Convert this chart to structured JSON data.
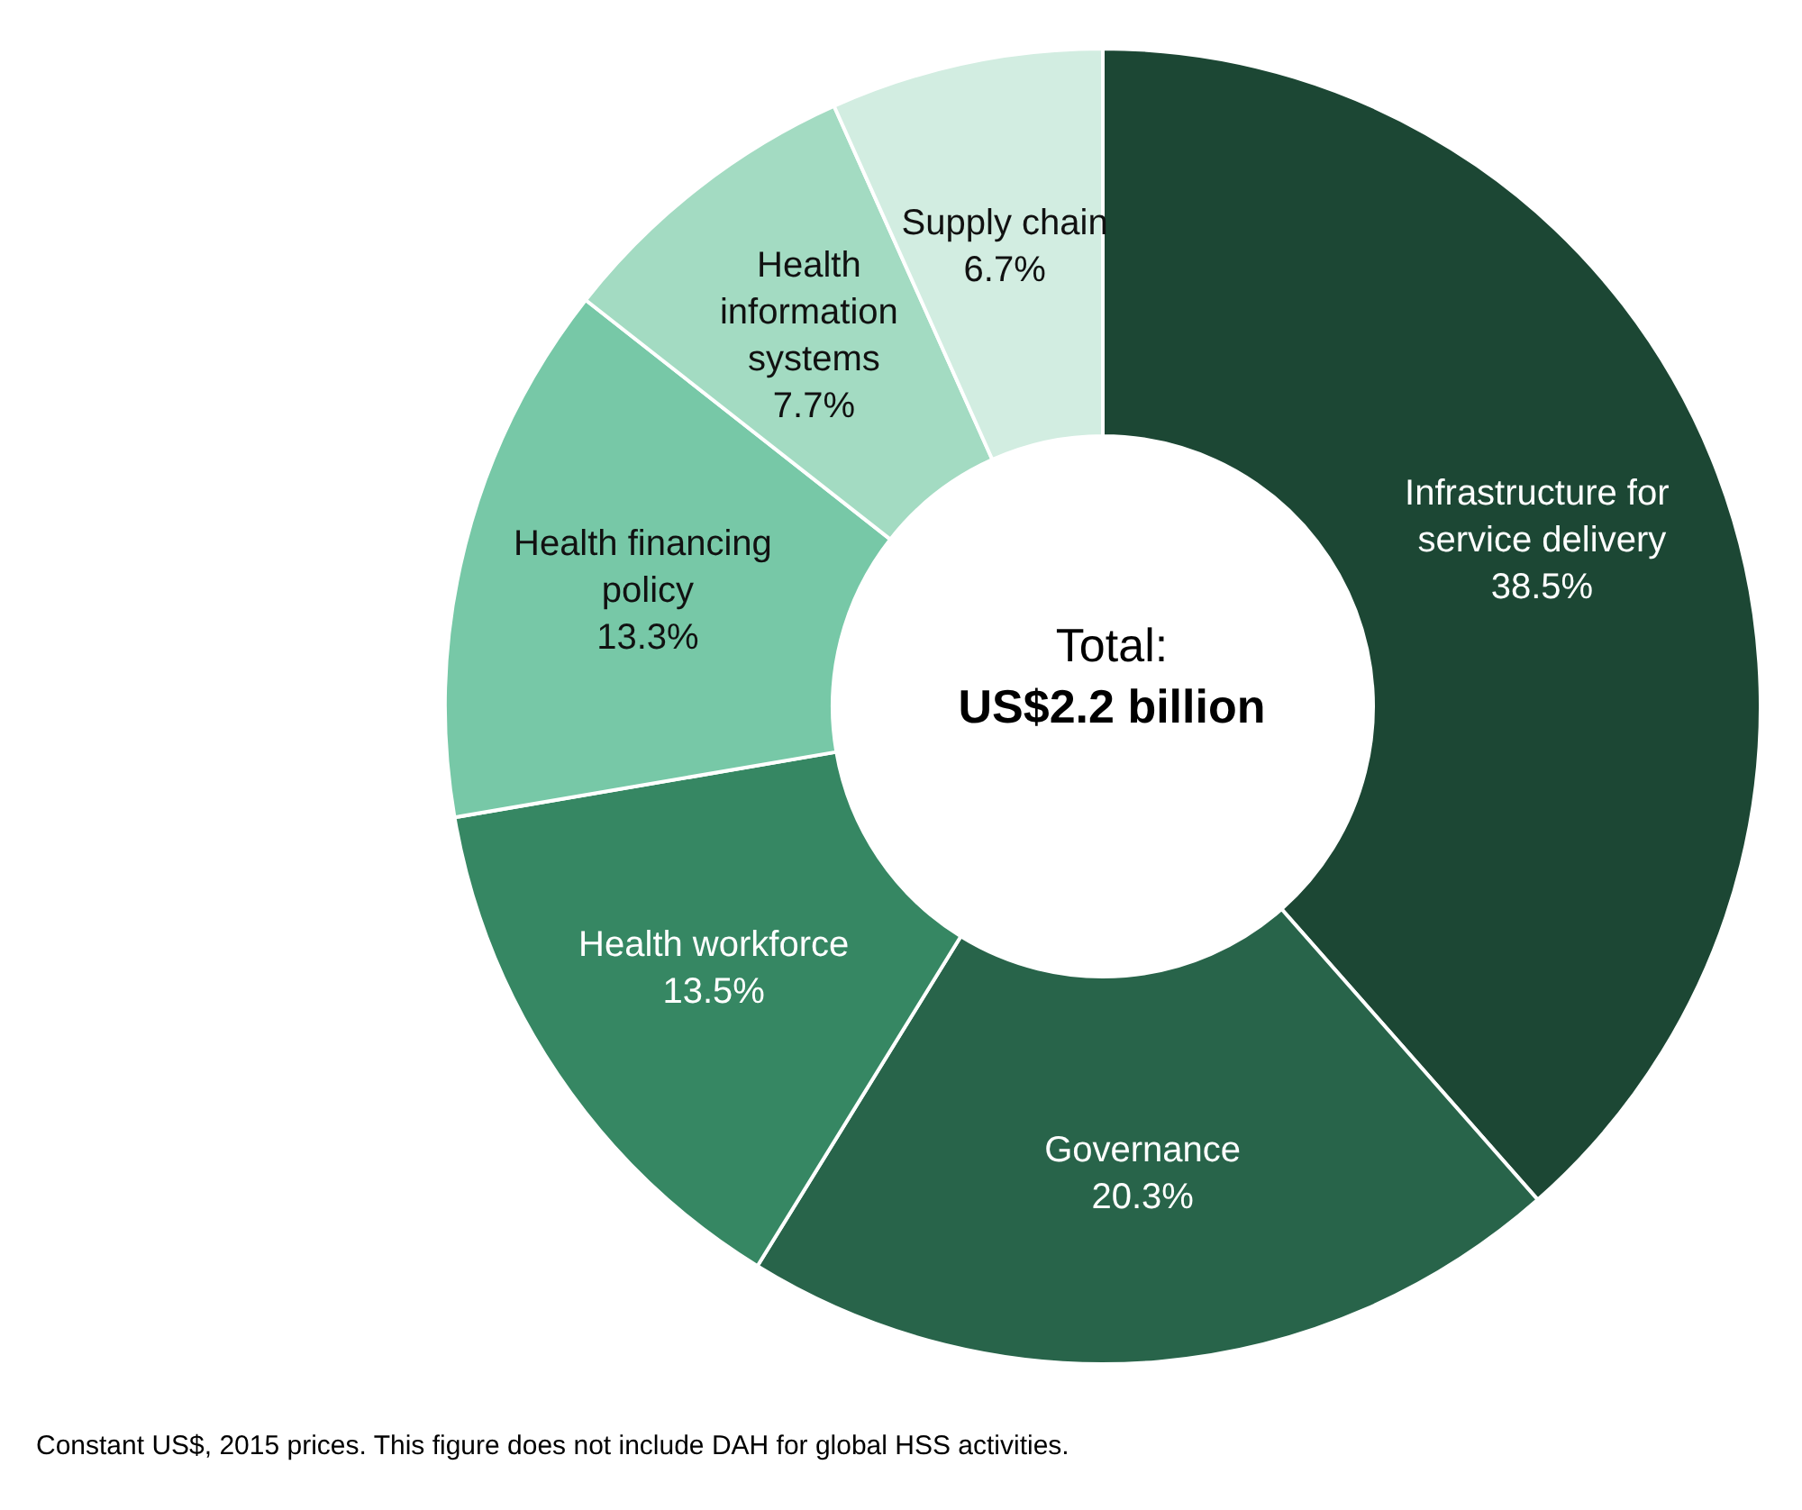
{
  "chart_data": {
    "type": "donut",
    "title": "Total:",
    "subtitle": "US$2.2 billion",
    "categories": [
      "Infrastructure for service delivery",
      "Governance",
      "Health workforce",
      "Health financing policy",
      "Health information systems",
      "Supply chain"
    ],
    "values": [
      38.5,
      20.3,
      13.5,
      13.3,
      7.7,
      6.7
    ],
    "value_labels": [
      "38.5%",
      "20.3%",
      "13.5%",
      "13.3%",
      "7.7%",
      "6.7%"
    ],
    "colors": [
      "#1c4734",
      "#28644a",
      "#368763",
      "#77c8a7",
      "#a3dbc2",
      "#d2ede1"
    ],
    "legend": false,
    "annotations": [
      "Constant US$, 2015 prices. This figure does not include DAH for global HSS activities."
    ]
  }
}
